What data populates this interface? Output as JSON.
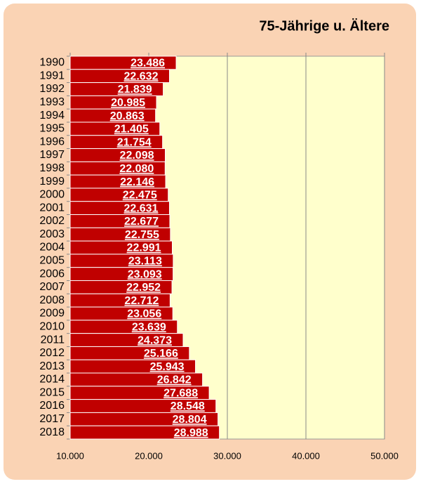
{
  "chart_data": {
    "type": "bar",
    "orientation": "horizontal",
    "title": "75-Jährige u. Ältere",
    "categories": [
      "1990",
      "1991",
      "1992",
      "1993",
      "1994",
      "1995",
      "1996",
      "1997",
      "1998",
      "1999",
      "2000",
      "2001",
      "2002",
      "2003",
      "2004",
      "2005",
      "2006",
      "2007",
      "2008",
      "2009",
      "2010",
      "2011",
      "2012",
      "2013",
      "2014",
      "2015",
      "2016",
      "2017",
      "2018"
    ],
    "values": [
      23486,
      22632,
      21839,
      20985,
      20863,
      21405,
      21754,
      22098,
      22080,
      22146,
      22475,
      22631,
      22677,
      22755,
      22991,
      23113,
      23093,
      22952,
      22712,
      23056,
      23639,
      24373,
      25166,
      25943,
      26842,
      27688,
      28548,
      28804,
      28988
    ],
    "value_labels": [
      "23.486",
      "22.632",
      "21.839",
      "20.985",
      "20.863",
      "21.405",
      "21.754",
      "22.098",
      "22.080",
      "22.146",
      "22.475",
      "22.631",
      "22.677",
      "22.755",
      "22.991",
      "23.113",
      "23.093",
      "22.952",
      "22.712",
      "23.056",
      "23.639",
      "24.373",
      "25.166",
      "25.943",
      "26.842",
      "27.688",
      "28.548",
      "28.804",
      "28.988"
    ],
    "color": "#c00000",
    "xlim": [
      10000,
      50000
    ],
    "xticks": [
      {
        "value": 10000,
        "label": "10.000"
      },
      {
        "value": 20000,
        "label": "20.000"
      },
      {
        "value": 30000,
        "label": "30.000"
      },
      {
        "value": 40000,
        "label": "40.000"
      },
      {
        "value": 50000,
        "label": "50.000"
      }
    ],
    "grid": true
  }
}
